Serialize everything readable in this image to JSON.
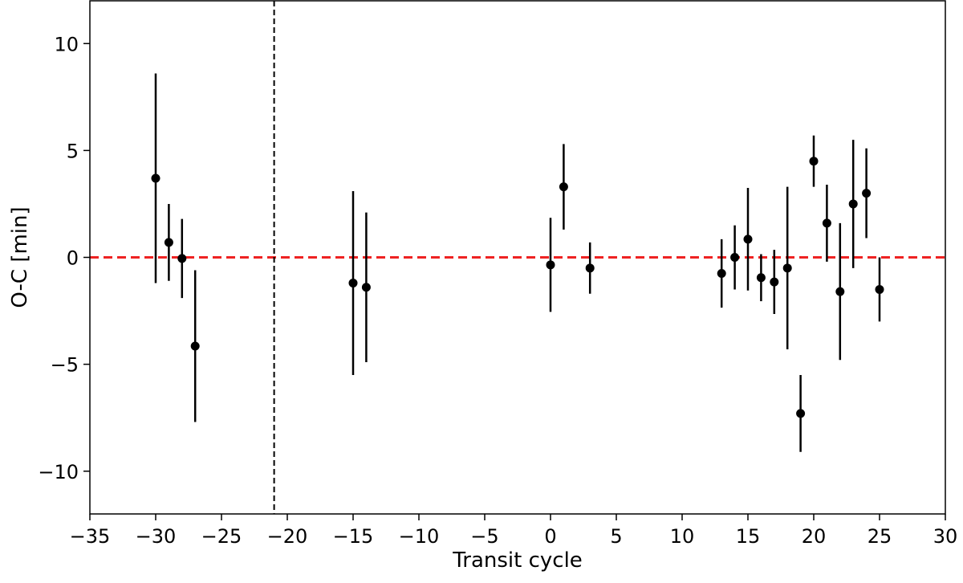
{
  "chart_data": {
    "type": "scatter",
    "xlabel": "Transit cycle",
    "ylabel": "O-C [min]",
    "xlim": [
      -35,
      30
    ],
    "ylim": [
      -12,
      12
    ],
    "xticks": [
      -35,
      -30,
      -25,
      -20,
      -15,
      -10,
      -5,
      0,
      5,
      10,
      15,
      20,
      25,
      30
    ],
    "yticks": [
      -10,
      -5,
      0,
      5,
      10
    ],
    "xtick_labels": [
      "−35",
      "−30",
      "−25",
      "−20",
      "−15",
      "−10",
      "−5",
      "0",
      "5",
      "10",
      "15",
      "20",
      "25",
      "30"
    ],
    "ytick_labels": [
      "−10",
      "−5",
      "0",
      "5",
      "10"
    ],
    "grid": false,
    "reference_lines": [
      {
        "orientation": "horizontal",
        "value": 0,
        "style": "dashed",
        "color": "#ee2222"
      },
      {
        "orientation": "vertical",
        "value": -21,
        "style": "dashed",
        "color": "#000000"
      }
    ],
    "series": [
      {
        "marker_color": "#000000",
        "points": [
          {
            "x": -30,
            "y": 3.7,
            "yerr": 4.9
          },
          {
            "x": -29,
            "y": 0.7,
            "yerr": 1.8
          },
          {
            "x": -28,
            "y": -0.05,
            "yerr": 1.85
          },
          {
            "x": -27,
            "y": -4.15,
            "yerr": 3.55
          },
          {
            "x": -15,
            "y": -1.2,
            "yerr": 4.3
          },
          {
            "x": -14,
            "y": -1.4,
            "yerr": 3.5
          },
          {
            "x": 0,
            "y": -0.35,
            "yerr": 2.2
          },
          {
            "x": 1,
            "y": 3.3,
            "yerr": 2.0
          },
          {
            "x": 3,
            "y": -0.5,
            "yerr": 1.2
          },
          {
            "x": 13,
            "y": -0.75,
            "yerr": 1.6
          },
          {
            "x": 14,
            "y": 0.0,
            "yerr": 1.5
          },
          {
            "x": 15,
            "y": 0.85,
            "yerr": 2.4
          },
          {
            "x": 16,
            "y": -0.95,
            "yerr": 1.1
          },
          {
            "x": 17,
            "y": -1.15,
            "yerr": 1.5
          },
          {
            "x": 18,
            "y": -0.5,
            "yerr": 3.8
          },
          {
            "x": 19,
            "y": -7.3,
            "yerr": 1.8
          },
          {
            "x": 20,
            "y": 4.5,
            "yerr": 1.2
          },
          {
            "x": 21,
            "y": 1.6,
            "yerr": 1.8
          },
          {
            "x": 22,
            "y": -1.6,
            "yerr": 3.2
          },
          {
            "x": 23,
            "y": 2.5,
            "yerr": 3.0
          },
          {
            "x": 24,
            "y": 3.0,
            "yerr": 2.1
          },
          {
            "x": 25,
            "y": -1.5,
            "yerr": 1.5
          }
        ]
      }
    ]
  }
}
